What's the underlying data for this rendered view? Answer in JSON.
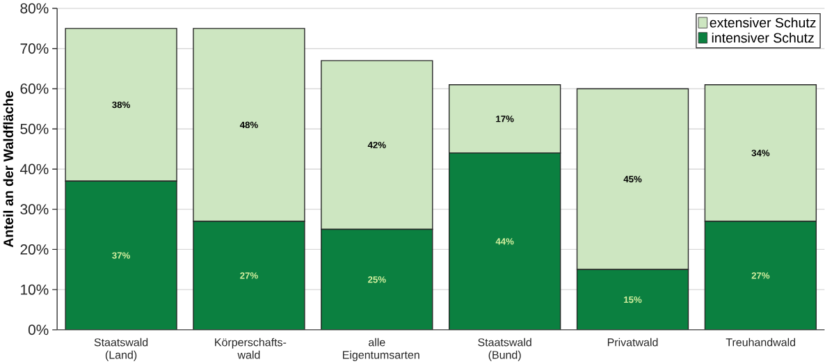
{
  "chart_data": {
    "type": "bar",
    "stacked": true,
    "ylabel": "Anteil an der Waldfläche",
    "categories": [
      "Staatswald (Land)",
      "Körperschafts-wald",
      "alle Eigentumsarten",
      "Staatswald (Bund)",
      "Privatwald",
      "Treuhandwald"
    ],
    "series": [
      {
        "name": "intensiver Schutz",
        "color": "#0b8040",
        "values": [
          37,
          27,
          25,
          44,
          15,
          27
        ],
        "value_labels": [
          "37%",
          "27%",
          "25%",
          "44%",
          "15%",
          "27%"
        ]
      },
      {
        "name": "extensiver Schutz",
        "color": "#cde6c1",
        "values": [
          38,
          48,
          42,
          17,
          45,
          34
        ],
        "value_labels": [
          "38%",
          "48%",
          "42%",
          "17%",
          "45%",
          "34%"
        ]
      }
    ],
    "ylim": [
      0,
      80
    ],
    "yticks": [
      {
        "value": 0,
        "label": "0%"
      },
      {
        "value": 10,
        "label": "10%"
      },
      {
        "value": 20,
        "label": "20%"
      },
      {
        "value": 30,
        "label": "30%"
      },
      {
        "value": 40,
        "label": "40%"
      },
      {
        "value": 50,
        "label": "50%"
      },
      {
        "value": 60,
        "label": "60%"
      },
      {
        "value": 70,
        "label": "70%"
      },
      {
        "value": 80,
        "label": "80%"
      }
    ],
    "grid": "y",
    "legend": "top right"
  }
}
